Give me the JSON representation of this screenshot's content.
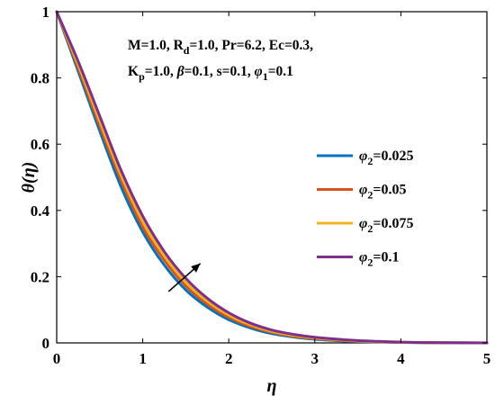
{
  "chart_data": {
    "type": "line",
    "title": "",
    "xlabel": "η",
    "ylabel": "θ(η)",
    "xlim": [
      0,
      5
    ],
    "ylim": [
      0,
      1
    ],
    "xticks": [
      "0",
      "1",
      "2",
      "3",
      "4",
      "5"
    ],
    "yticks": [
      "0",
      "0.2",
      "0.4",
      "0.6",
      "0.8",
      "1"
    ],
    "grid": false,
    "legend_position": "right",
    "annotation": {
      "line1": "M=1.0, R_d=1.0, Pr=6.2, Ec=0.3,",
      "line2": "K_p=1.0, β=0.1, s=0.1, φ_1=0.1"
    },
    "arrow": {
      "from": [
        1.3,
        0.155
      ],
      "to": [
        1.67,
        0.24
      ],
      "meaning": "increasing φ2"
    },
    "series": [
      {
        "name": "φ2=0.025",
        "color": "#0072BD",
        "x": [
          0,
          0.25,
          0.5,
          0.75,
          1.0,
          1.25,
          1.5,
          1.75,
          2.0,
          2.25,
          2.5,
          2.75,
          3.0,
          3.5,
          4.0,
          4.5,
          5.0
        ],
        "values": [
          1.0,
          0.82,
          0.64,
          0.47,
          0.335,
          0.235,
          0.16,
          0.108,
          0.07,
          0.045,
          0.028,
          0.018,
          0.011,
          0.004,
          0.0015,
          0.0004,
          0.0
        ]
      },
      {
        "name": "φ2=0.05",
        "color": "#D95319",
        "x": [
          0,
          0.25,
          0.5,
          0.75,
          1.0,
          1.25,
          1.5,
          1.75,
          2.0,
          2.25,
          2.5,
          2.75,
          3.0,
          3.5,
          4.0,
          4.5,
          5.0
        ],
        "values": [
          1.0,
          0.83,
          0.655,
          0.49,
          0.35,
          0.25,
          0.172,
          0.117,
          0.077,
          0.05,
          0.032,
          0.02,
          0.013,
          0.005,
          0.0018,
          0.0005,
          0.0
        ]
      },
      {
        "name": "φ2=0.075",
        "color": "#EDB120",
        "x": [
          0,
          0.25,
          0.5,
          0.75,
          1.0,
          1.25,
          1.5,
          1.75,
          2.0,
          2.25,
          2.5,
          2.75,
          3.0,
          3.5,
          4.0,
          4.5,
          5.0
        ],
        "values": [
          1.0,
          0.84,
          0.67,
          0.505,
          0.367,
          0.263,
          0.183,
          0.126,
          0.084,
          0.055,
          0.035,
          0.023,
          0.015,
          0.006,
          0.002,
          0.0006,
          0.0
        ]
      },
      {
        "name": "φ2=0.1",
        "color": "#7E2F8E",
        "x": [
          0,
          0.25,
          0.5,
          0.75,
          1.0,
          1.25,
          1.5,
          1.75,
          2.0,
          2.25,
          2.5,
          2.75,
          3.0,
          3.5,
          4.0,
          4.5,
          5.0
        ],
        "values": [
          1.0,
          0.85,
          0.685,
          0.52,
          0.383,
          0.276,
          0.195,
          0.135,
          0.091,
          0.06,
          0.039,
          0.026,
          0.017,
          0.007,
          0.0025,
          0.0007,
          0.0
        ]
      }
    ]
  }
}
